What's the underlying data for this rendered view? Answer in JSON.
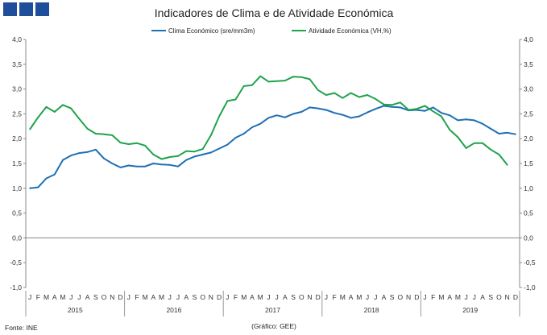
{
  "brand_colors": [
    "#1f4e9a"
  ],
  "chart_data": {
    "type": "line",
    "title": "Indicadores de Clima e de Atividade Económica",
    "source": "Fonte: INE",
    "credit": "(Gráfico: GEE)",
    "legend_position": "top-center",
    "grid": false,
    "ylim": [
      -1.0,
      4.0
    ],
    "y_ticks": [
      "4,0",
      "3,5",
      "3,0",
      "2,5",
      "2,0",
      "1,5",
      "1,0",
      "0,5",
      "0,0",
      "-0,5",
      "-1,0"
    ],
    "month_labels": [
      "J",
      "F",
      "M",
      "A",
      "M",
      "J",
      "J",
      "A",
      "S",
      "O",
      "N",
      "D"
    ],
    "years": [
      "2015",
      "2016",
      "2017",
      "2018",
      "2019"
    ],
    "series": [
      {
        "name": "Clima Económico (sre/mm3m)",
        "color": "#1f6fb5",
        "values": [
          1.0,
          1.02,
          1.2,
          1.28,
          1.57,
          1.66,
          1.71,
          1.73,
          1.78,
          1.6,
          1.5,
          1.42,
          1.46,
          1.44,
          1.44,
          1.5,
          1.48,
          1.47,
          1.44,
          1.57,
          1.64,
          1.68,
          1.72,
          1.8,
          1.88,
          2.02,
          2.1,
          2.23,
          2.3,
          2.42,
          2.47,
          2.43,
          2.5,
          2.54,
          2.63,
          2.61,
          2.58,
          2.52,
          2.48,
          2.42,
          2.45,
          2.53,
          2.6,
          2.66,
          2.64,
          2.63,
          2.57,
          2.58,
          2.56,
          2.63,
          2.52,
          2.47,
          2.37,
          2.39,
          2.37,
          2.3,
          2.2,
          2.1,
          2.12,
          2.09
        ]
      },
      {
        "name": "Atividade Económica (VH,%)",
        "color": "#1fa34a",
        "values": [
          2.19,
          2.43,
          2.64,
          2.54,
          2.68,
          2.61,
          2.4,
          2.2,
          2.1,
          2.09,
          2.07,
          1.92,
          1.89,
          1.91,
          1.86,
          1.68,
          1.59,
          1.63,
          1.65,
          1.75,
          1.74,
          1.79,
          2.07,
          2.45,
          2.76,
          2.79,
          3.06,
          3.08,
          3.26,
          3.15,
          3.16,
          3.17,
          3.25,
          3.24,
          3.2,
          2.98,
          2.88,
          2.92,
          2.82,
          2.92,
          2.84,
          2.88,
          2.8,
          2.69,
          2.68,
          2.73,
          2.58,
          2.6,
          2.66,
          2.55,
          2.45,
          2.18,
          2.03,
          1.81,
          1.91,
          1.91,
          1.78,
          1.68,
          1.47,
          null
        ]
      }
    ]
  }
}
